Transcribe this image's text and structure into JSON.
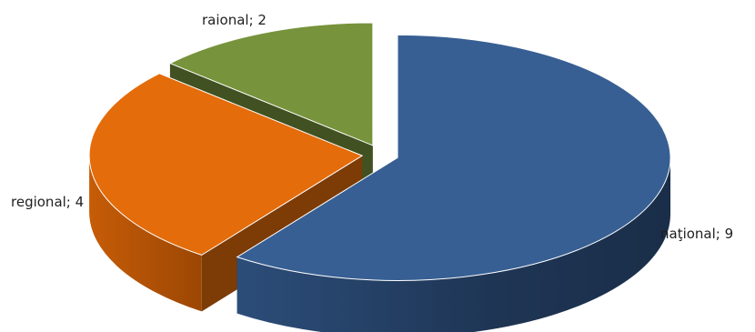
{
  "chart_data": {
    "type": "pie",
    "style": "3d-exploded",
    "slices": [
      {
        "name": "naţional",
        "value": 9,
        "label": "naţional; 9",
        "color": "#375F93"
      },
      {
        "name": "regional",
        "value": 4,
        "label": "regional; 4",
        "color": "#E46C0A"
      },
      {
        "name": "raional",
        "value": 2,
        "label": "raional; 2",
        "color": "#77933C"
      }
    ]
  }
}
